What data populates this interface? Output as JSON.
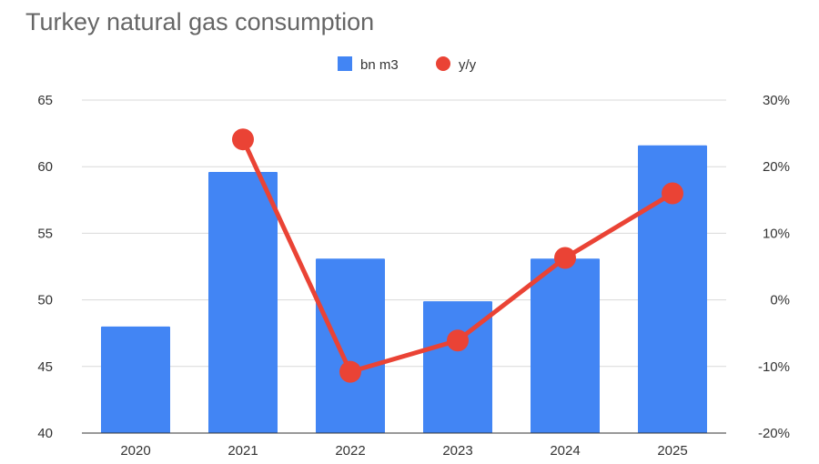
{
  "chart_data": {
    "type": "bar",
    "title": "Turkey natural gas consumption",
    "categories": [
      "2020",
      "2021",
      "2022",
      "2023",
      "2024",
      "2025"
    ],
    "series": [
      {
        "name": "bn m3",
        "type": "bar",
        "axis": "left",
        "color": "#4285f4",
        "values": [
          48.0,
          59.6,
          53.1,
          49.9,
          53.1,
          61.6
        ]
      },
      {
        "name": "y/y",
        "type": "line",
        "axis": "right",
        "color": "#ea4335",
        "values": [
          null,
          24.1,
          -10.8,
          -6.1,
          6.3,
          16.0
        ]
      }
    ],
    "y_left": {
      "min": 40,
      "max": 65,
      "ticks": [
        "40",
        "45",
        "50",
        "55",
        "60",
        "65"
      ]
    },
    "y_right": {
      "min": -20,
      "max": 30,
      "ticks": [
        "-20%",
        "-10%",
        "0%",
        "10%",
        "20%",
        "30%"
      ]
    },
    "grid": true,
    "legend_position": "top-center"
  }
}
